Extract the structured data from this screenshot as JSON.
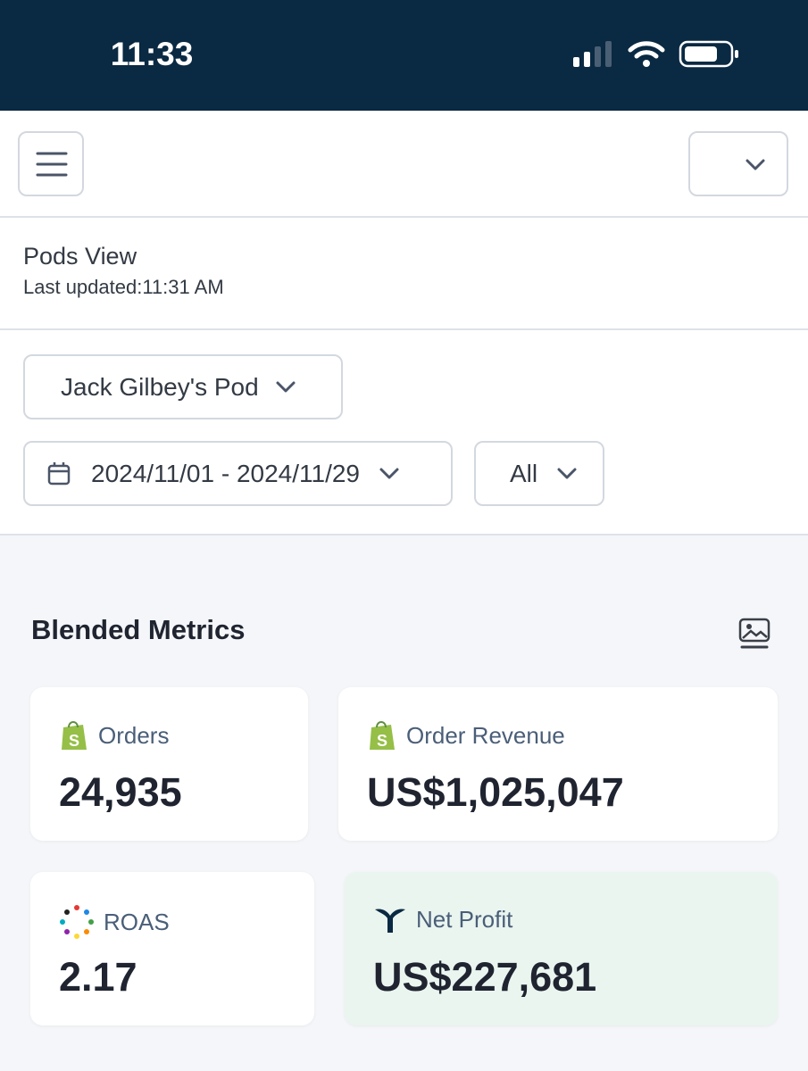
{
  "status_bar": {
    "time": "11:33"
  },
  "page": {
    "title": "Pods View",
    "last_updated": "Last updated:11:31 AM"
  },
  "filters": {
    "pod": "Jack Gilbey's Pod",
    "date_range": "2024/11/01 - 2024/11/29",
    "channel": "All"
  },
  "section": {
    "title": "Blended Metrics"
  },
  "metrics": [
    {
      "label": "Orders",
      "value": "24,935"
    },
    {
      "label": "Order Revenue",
      "value": "US$1,025,047"
    },
    {
      "label": "ROAS",
      "value": "2.17"
    },
    {
      "label": "Net Profit",
      "value": "US$227,681"
    }
  ]
}
